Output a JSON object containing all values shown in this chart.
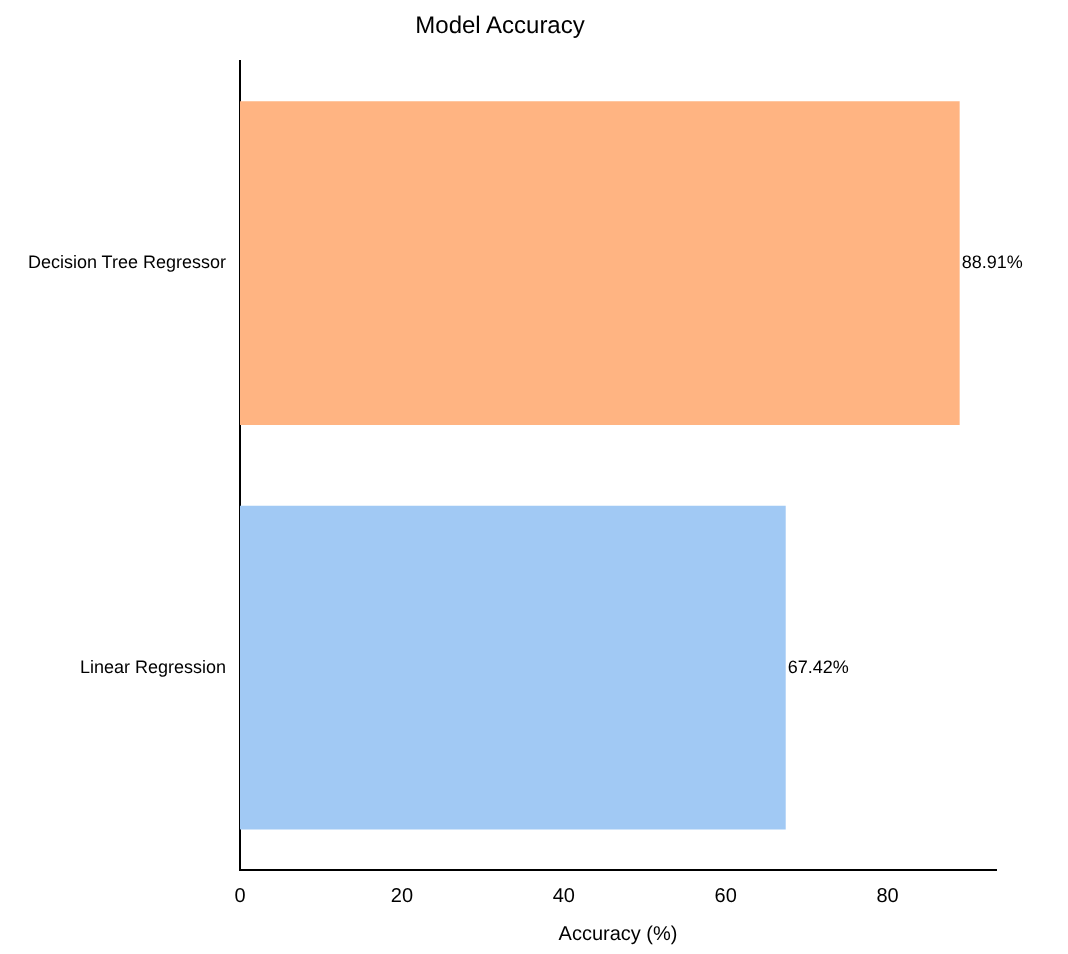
{
  "chart_data": {
    "type": "bar",
    "orientation": "horizontal",
    "title": "Model Accuracy",
    "xlabel": "Accuracy (%)",
    "categories": [
      "Decision Tree Regressor",
      "Linear Regression"
    ],
    "values": [
      88.91,
      67.42
    ],
    "colors": [
      "#ffb482",
      "#a1c9f4"
    ],
    "value_labels": [
      "88.91%",
      "67.42%"
    ],
    "xlim": [
      0,
      93.4
    ],
    "xticks": [
      0,
      20,
      40,
      60,
      80
    ],
    "grid": false,
    "legend": false
  }
}
